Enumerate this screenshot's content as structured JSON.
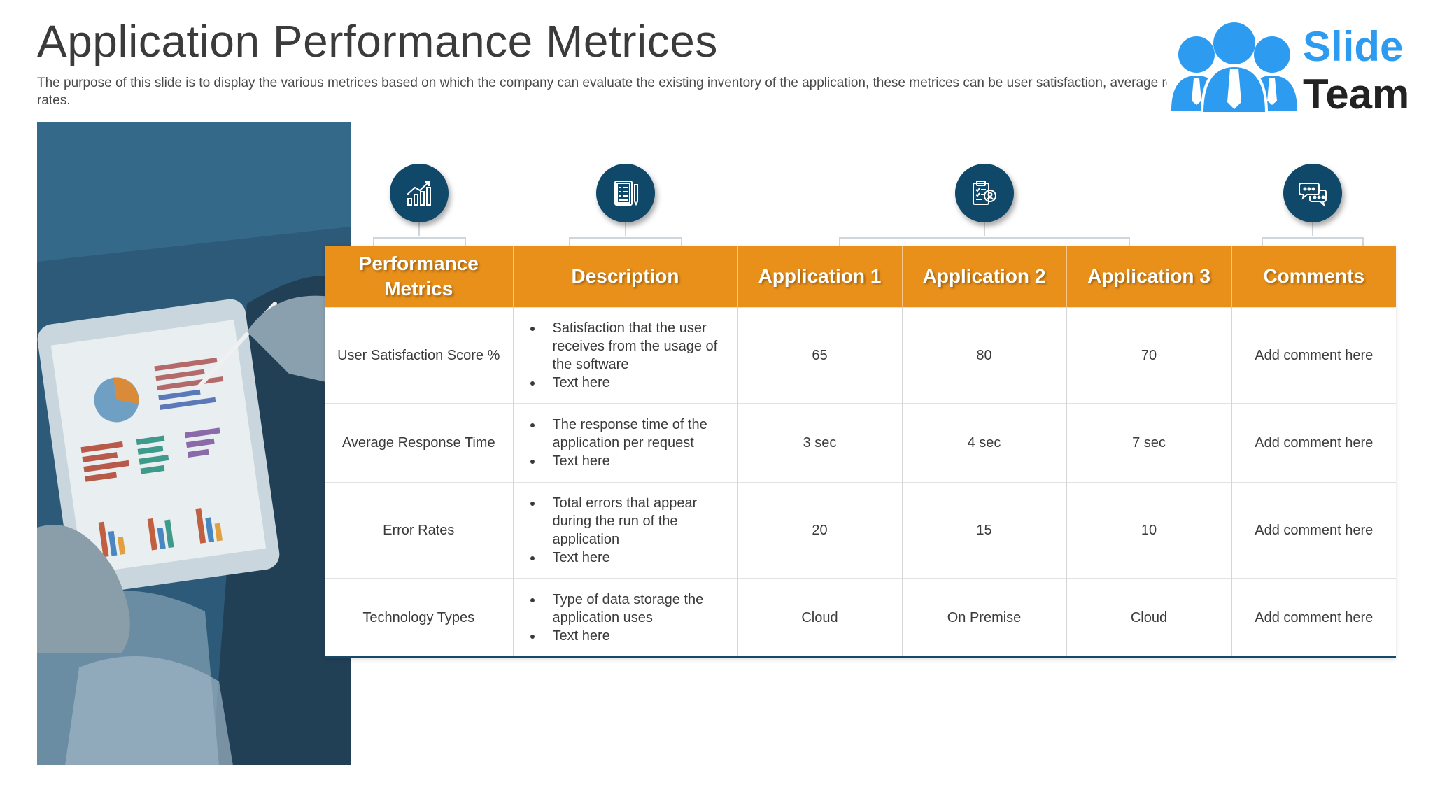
{
  "title": "Application Performance Metrices",
  "subtitle": "The purpose of this slide is to display the various metrices based on which the company can evaluate the existing inventory of the application, these metrices can be user satisfaction, average response time and error rates.",
  "logo": {
    "line1": "Slide",
    "line2": "Team",
    "brand_color": "#2d9cf0"
  },
  "icons": [
    "chart-growth-icon",
    "document-list-icon",
    "clipboard-user-icon",
    "chat-bubbles-icon"
  ],
  "colors": {
    "header": "#e8901a",
    "icon_circle": "#0f4868",
    "table_border": "#174a68"
  },
  "table": {
    "headers": [
      "Performance Metrics",
      "Description",
      "Application 1",
      "Application 2",
      "Application 3",
      "Comments"
    ],
    "rows": [
      {
        "metric": "User Satisfaction Score %",
        "desc": [
          "Satisfaction that the user receives from the usage of the software",
          "Text here"
        ],
        "app1": "65",
        "app2": "80",
        "app3": "70",
        "comment": "Add comment here"
      },
      {
        "metric": "Average Response Time",
        "desc": [
          "The response time of the application per request",
          "Text here"
        ],
        "app1": "3 sec",
        "app2": "4 sec",
        "app3": "7 sec",
        "comment": "Add comment here"
      },
      {
        "metric": "Error Rates",
        "desc": [
          "Total errors that appear during the run of the application",
          "Text here"
        ],
        "app1": "20",
        "app2": "15",
        "app3": "10",
        "comment": "Add comment here"
      },
      {
        "metric": "Technology Types",
        "desc": [
          "Type of data storage the application uses",
          "Text here"
        ],
        "app1": "Cloud",
        "app2": "On Premise",
        "app3": "Cloud",
        "comment": "Add comment here"
      }
    ]
  }
}
